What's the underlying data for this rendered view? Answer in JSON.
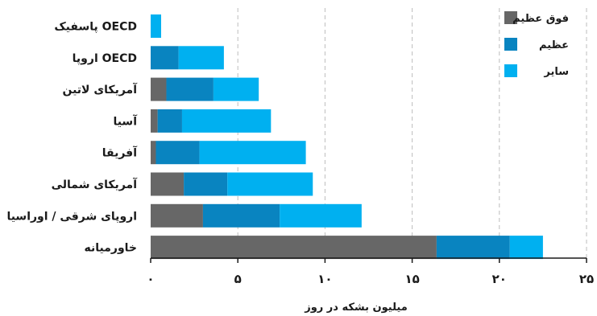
{
  "chart_data": {
    "type": "bar",
    "orientation": "horizontal",
    "stacked": true,
    "categories": [
      "OECD پاسفیک",
      "OECD اروپا",
      "آمریکای لاتین",
      "آسیا",
      "آفریقا",
      "آمریکای شمالی",
      "اروپای شرقی / اوراسیا",
      "خاورمیانه"
    ],
    "series": [
      {
        "name": "فوق عظیم",
        "color": "#676767",
        "values": [
          0,
          0,
          0.9,
          0.4,
          0.3,
          1.9,
          3.0,
          16.4
        ]
      },
      {
        "name": "عظیم",
        "color": "#0984c0",
        "values": [
          0,
          1.6,
          2.7,
          1.4,
          2.5,
          2.5,
          4.4,
          4.2
        ]
      },
      {
        "name": "سایر",
        "color": "#00b0f0",
        "values": [
          0.6,
          2.6,
          2.6,
          5.1,
          6.1,
          4.9,
          4.7,
          1.9
        ]
      }
    ],
    "x_ticks": [
      "۰",
      "۵",
      "۱۰",
      "۱۵",
      "۲۰",
      "۲۵"
    ],
    "xlim": [
      0,
      25
    ],
    "xlabel": "میلیون بشکه در روز",
    "ylabel": "",
    "title": "",
    "grid": "vertical-dashed",
    "legend_position": "top-right"
  }
}
